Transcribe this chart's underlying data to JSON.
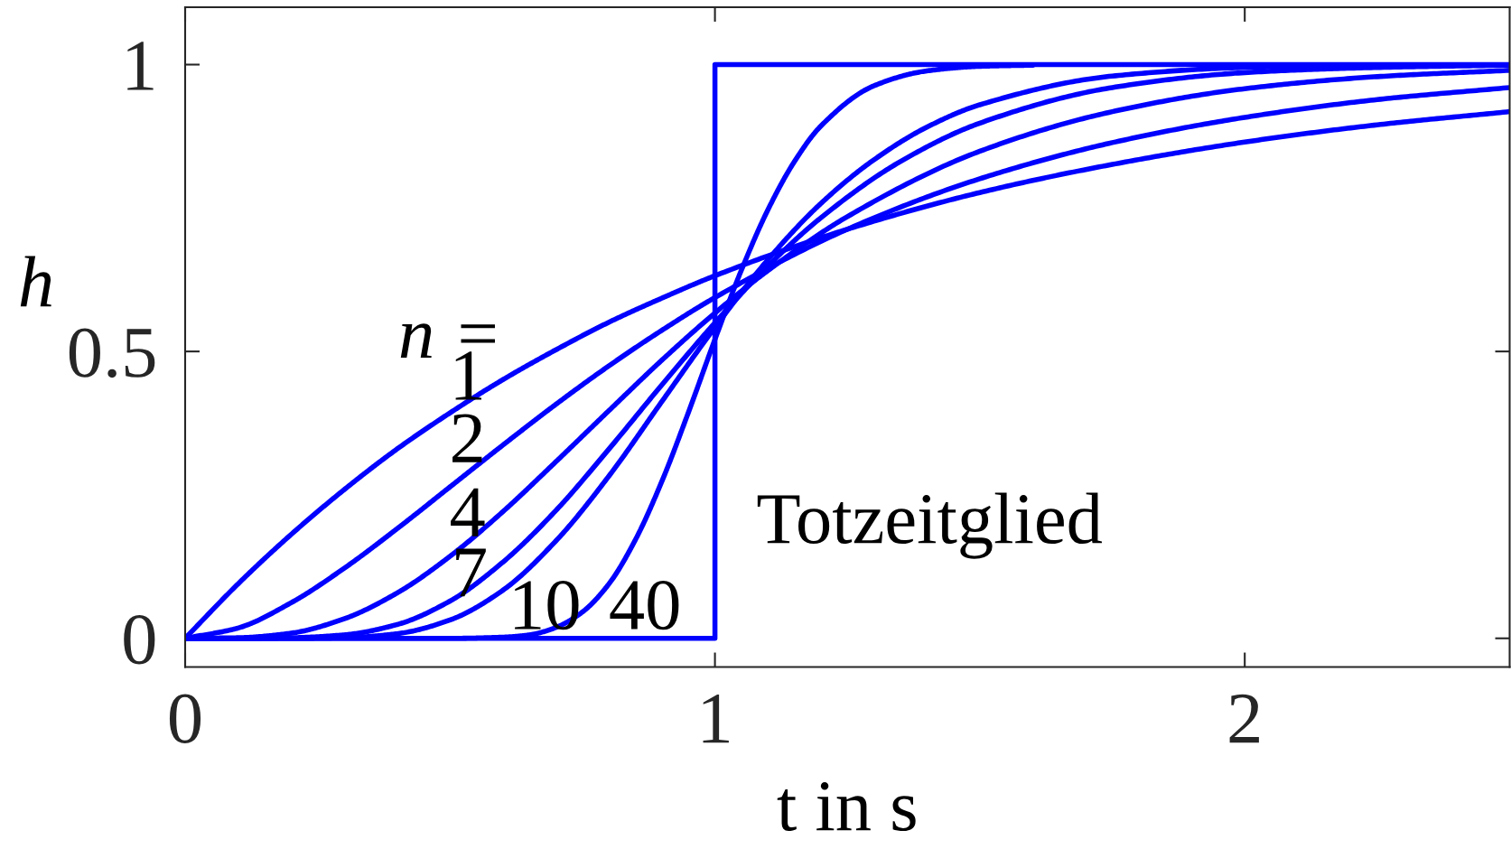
{
  "chart_data": {
    "type": "line",
    "xlabel": "t in s",
    "ylabel": "h",
    "xlim": [
      0,
      2.5
    ],
    "ylim": [
      -0.05,
      1.1
    ],
    "xticks": [
      0,
      1,
      2
    ],
    "yticks": [
      0,
      0.5,
      1
    ],
    "series": [
      {
        "color": "#0000ff",
        "x": [
          0,
          0.1,
          0.2,
          0.3,
          0.4,
          0.5,
          0.6,
          0.7,
          0.8,
          0.9,
          1,
          1.25,
          1.5,
          1.75,
          2,
          2.25,
          2.5
        ],
        "values": [
          0,
          0.095,
          0.181,
          0.259,
          0.33,
          0.393,
          0.451,
          0.503,
          0.551,
          0.593,
          0.632,
          0.713,
          0.777,
          0.826,
          0.865,
          0.895,
          0.918
        ]
      },
      {
        "color": "#0000ff",
        "x": [
          0,
          0.1,
          0.2,
          0.3,
          0.4,
          0.5,
          0.6,
          0.7,
          0.8,
          0.9,
          1,
          1.25,
          1.5,
          1.75,
          2,
          2.25,
          2.5
        ],
        "values": [
          0,
          0.018,
          0.062,
          0.122,
          0.191,
          0.264,
          0.337,
          0.408,
          0.475,
          0.537,
          0.594,
          0.713,
          0.801,
          0.864,
          0.908,
          0.939,
          0.96
        ]
      },
      {
        "color": "#0000ff",
        "x": [
          0,
          0.1,
          0.2,
          0.3,
          0.4,
          0.5,
          0.6,
          0.7,
          0.8,
          0.9,
          1,
          1.1,
          1.25,
          1.5,
          1.75,
          2,
          2.25,
          2.5
        ],
        "values": [
          0,
          0.001,
          0.009,
          0.034,
          0.079,
          0.143,
          0.221,
          0.308,
          0.397,
          0.485,
          0.567,
          0.641,
          0.735,
          0.849,
          0.918,
          0.958,
          0.979,
          0.99
        ]
      },
      {
        "color": "#0000ff",
        "x": [
          0,
          0.1,
          0.2,
          0.3,
          0.4,
          0.5,
          0.6,
          0.7,
          0.8,
          0.9,
          1,
          1.1,
          1.2,
          1.35,
          1.5,
          1.75,
          2,
          2.25,
          2.5
        ],
        "values": [
          0,
          0,
          0.001,
          0.006,
          0.024,
          0.065,
          0.133,
          0.223,
          0.33,
          0.442,
          0.55,
          0.649,
          0.733,
          0.831,
          0.898,
          0.96,
          0.986,
          0.995,
          0.999
        ]
      },
      {
        "color": "#0000ff",
        "x": [
          0,
          0.2,
          0.3,
          0.4,
          0.5,
          0.6,
          0.7,
          0.8,
          0.9,
          1,
          1.1,
          1.2,
          1.3,
          1.4,
          1.5,
          1.75,
          2,
          2.25
        ],
        "values": [
          0,
          0,
          0.001,
          0.008,
          0.032,
          0.084,
          0.17,
          0.283,
          0.413,
          0.542,
          0.66,
          0.758,
          0.834,
          0.891,
          0.93,
          0.98,
          0.995,
          0.999
        ]
      },
      {
        "color": "#0000ff",
        "x": [
          0,
          0.5,
          0.6,
          0.65,
          0.7,
          0.75,
          0.8,
          0.85,
          0.9,
          0.95,
          1,
          1.05,
          1.1,
          1.15,
          1.2,
          1.3,
          1.4,
          1.5,
          1.6
        ],
        "values": [
          0,
          0,
          0.002,
          0.006,
          0.019,
          0.046,
          0.095,
          0.172,
          0.274,
          0.394,
          0.521,
          0.642,
          0.747,
          0.831,
          0.893,
          0.963,
          0.989,
          0.997,
          0.999
        ]
      },
      {
        "type": "step",
        "color": "#0000ff",
        "x": [
          0,
          1,
          2.5
        ],
        "values": [
          0,
          1,
          1
        ]
      }
    ],
    "annotations": [
      "n =",
      "1",
      "2",
      "4",
      "7",
      "10",
      "40",
      "Totzeitglied"
    ]
  }
}
